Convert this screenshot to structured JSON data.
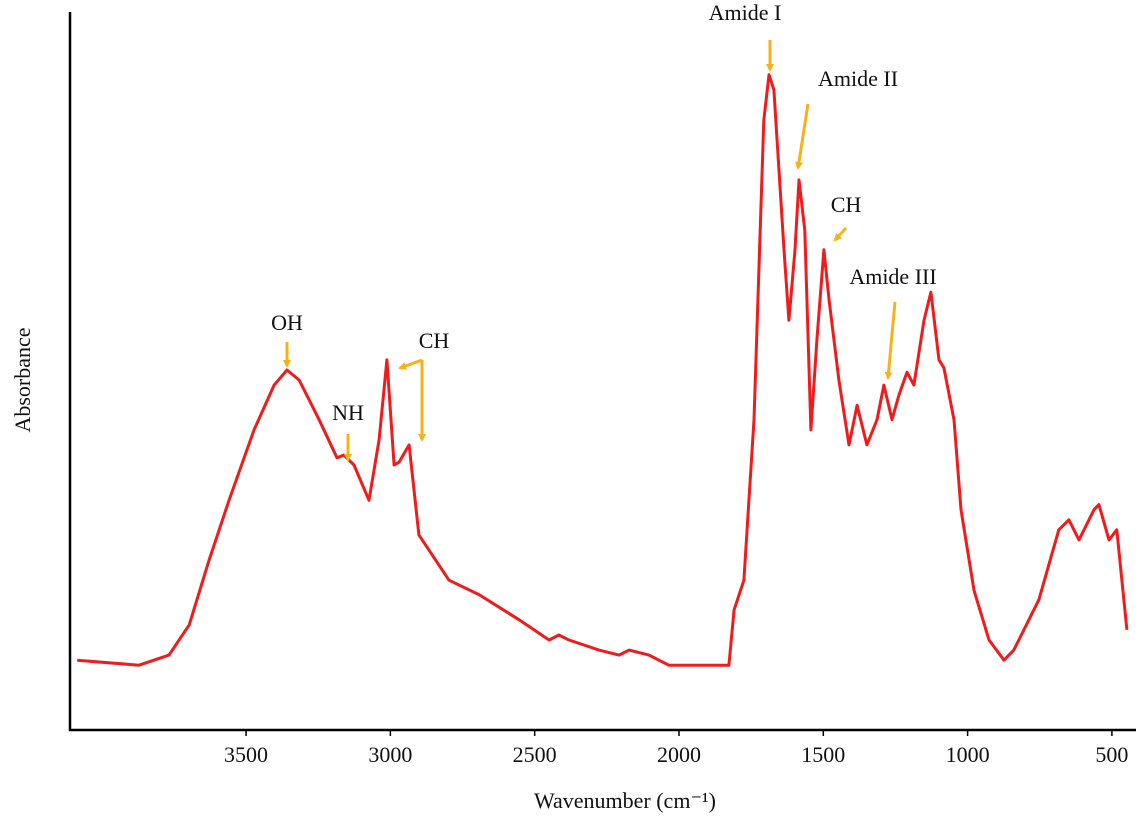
{
  "chart_data": {
    "type": "line",
    "xlabel": "Wavenumber (cm⁻¹)",
    "ylabel": "Absorbance",
    "xlim": [
      4110,
      420
    ],
    "ylim": [
      0,
      1
    ],
    "xticks": [
      3500,
      3000,
      2500,
      2000,
      1500,
      1000,
      500
    ],
    "grid": false,
    "series": [
      {
        "color": "#ee1c1c",
        "x": [
          4085,
          3871,
          3767,
          3697,
          3628,
          3559,
          3472,
          3403,
          3358,
          3316,
          3247,
          3185,
          3161,
          3126,
          3074,
          3039,
          3012,
          2987,
          2970,
          2935,
          2901,
          2797,
          2693,
          2554,
          2450,
          2416,
          2381,
          2277,
          2208,
          2173,
          2104,
          2035,
          1931,
          1827,
          1809,
          1775,
          1740,
          1706,
          1688,
          1671,
          1636,
          1619,
          1598,
          1584,
          1564,
          1543,
          1522,
          1498,
          1480,
          1446,
          1411,
          1383,
          1349,
          1314,
          1290,
          1262,
          1238,
          1210,
          1186,
          1151,
          1127,
          1099,
          1082,
          1047,
          1023,
          978,
          926,
          874,
          840,
          753,
          684,
          649,
          614,
          562,
          545,
          510,
          483,
          448
        ],
        "values": [
          0.097,
          0.09,
          0.104,
          0.146,
          0.236,
          0.319,
          0.417,
          0.479,
          0.5,
          0.486,
          0.431,
          0.378,
          0.382,
          0.368,
          0.319,
          0.403,
          0.514,
          0.368,
          0.372,
          0.396,
          0.271,
          0.208,
          0.188,
          0.153,
          0.125,
          0.132,
          0.125,
          0.111,
          0.104,
          0.111,
          0.104,
          0.09,
          0.09,
          0.09,
          0.167,
          0.208,
          0.431,
          0.847,
          0.91,
          0.889,
          0.667,
          0.569,
          0.667,
          0.764,
          0.694,
          0.417,
          0.542,
          0.667,
          0.597,
          0.486,
          0.396,
          0.451,
          0.396,
          0.431,
          0.479,
          0.431,
          0.465,
          0.497,
          0.479,
          0.569,
          0.608,
          0.514,
          0.503,
          0.431,
          0.306,
          0.194,
          0.125,
          0.097,
          0.111,
          0.181,
          0.278,
          0.292,
          0.264,
          0.306,
          0.313,
          0.264,
          0.278,
          0.139
        ]
      }
    ],
    "annotations": [
      "Amide I",
      "Amide II",
      "CH",
      "Amide III",
      "OH",
      "NH",
      "CH"
    ],
    "annotation_color": "#f5b21b"
  }
}
